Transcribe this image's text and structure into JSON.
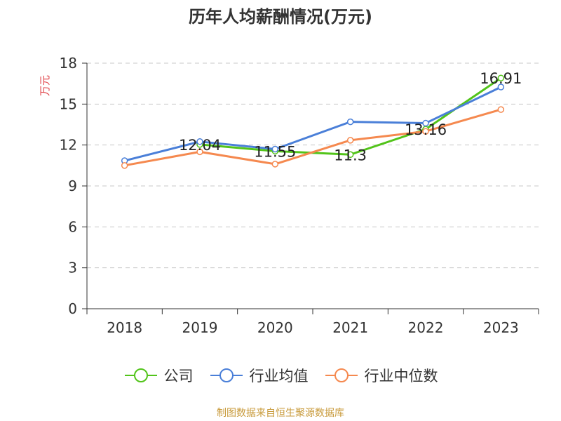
{
  "chart_data": {
    "type": "line",
    "title": "历年人均薪酬情况(万元)",
    "ylabel": "万元",
    "xlabel": "",
    "categories": [
      "2018",
      "2019",
      "2020",
      "2021",
      "2022",
      "2023"
    ],
    "ylim": [
      0,
      18
    ],
    "yticks": [
      0,
      3,
      6,
      9,
      12,
      15,
      18
    ],
    "grid": true,
    "legend_position": "bottom",
    "series": [
      {
        "name": "公司",
        "color": "#52c41a",
        "values": [
          null,
          12.04,
          11.55,
          11.3,
          13.16,
          16.91
        ],
        "data_labels": [
          "",
          "12.04",
          "11.55",
          "11.3",
          "13.16",
          "16.91"
        ]
      },
      {
        "name": "行业均值",
        "color": "#4a7fd8",
        "values": [
          10.85,
          12.25,
          11.7,
          13.7,
          13.6,
          16.25
        ]
      },
      {
        "name": "行业中位数",
        "color": "#f5894f",
        "values": [
          10.5,
          11.5,
          10.6,
          12.35,
          13.0,
          14.6
        ]
      }
    ]
  },
  "source_note": "制图数据来自恒生聚源数据库"
}
